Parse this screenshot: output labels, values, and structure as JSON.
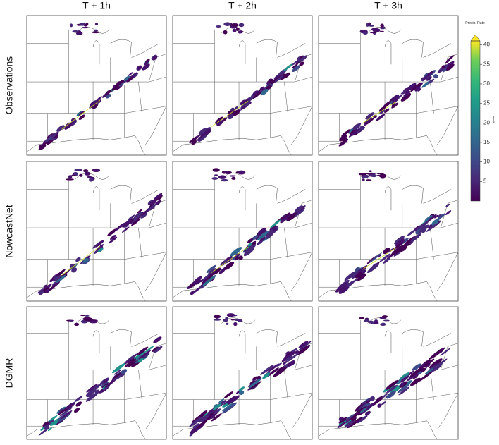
{
  "figure": {
    "columns": [
      "T + 1h",
      "T + 2h",
      "T + 3h"
    ],
    "rows": [
      "Observations",
      "NowcastNet",
      "DGMR"
    ],
    "colorbar": {
      "label": "Precip. Rate",
      "unit": "mm/h",
      "lim": [
        0,
        41
      ],
      "ticks": [
        5,
        10,
        15,
        20,
        25,
        30,
        35,
        40
      ],
      "extend": "max"
    }
  }
}
